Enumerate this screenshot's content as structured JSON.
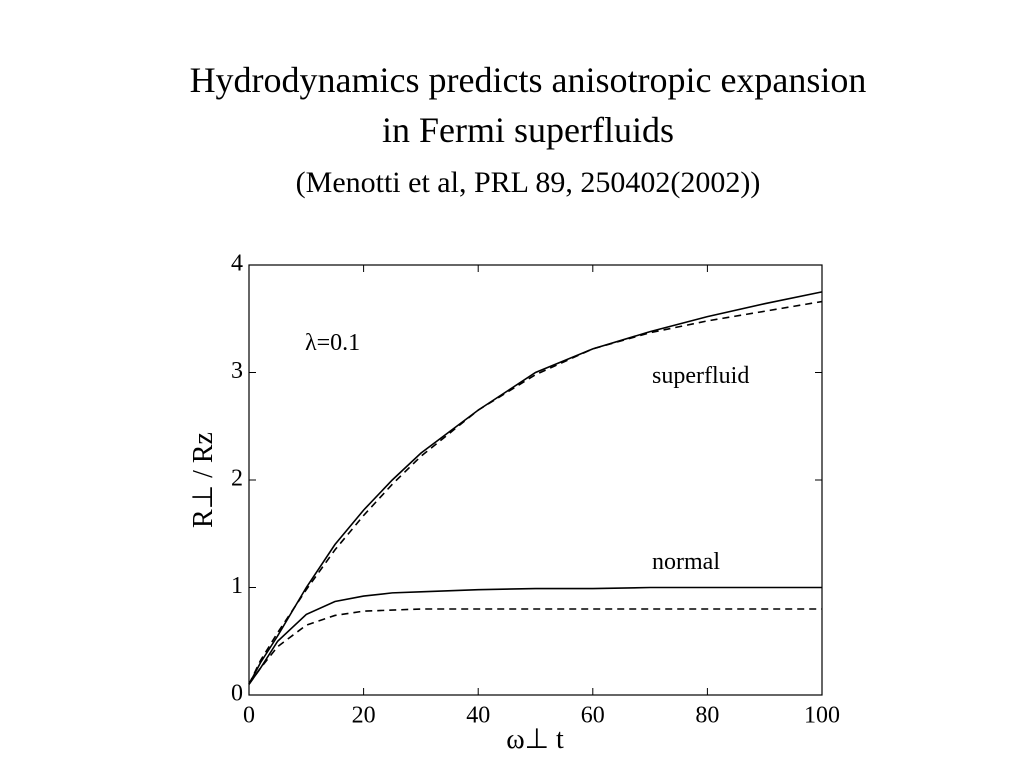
{
  "chart_data": {
    "type": "line",
    "title": [
      "Hydrodynamics predicts anisotropic expansion",
      "in Fermi superfluids"
    ],
    "subtitle": "(Menotti et al, PRL 89, 250402(2002))",
    "xlabel": "ω⊥ t",
    "ylabel": "R⊥ / Rz",
    "annotations": [
      "λ=0.1",
      "superfluid",
      "normal"
    ],
    "x": [
      0,
      2,
      5,
      10,
      15,
      20,
      25,
      30,
      40,
      50,
      60,
      70,
      80,
      90,
      100
    ],
    "series": [
      {
        "color": "#000000",
        "style": "solid",
        "values": [
          0.1,
          0.3,
          0.55,
          1.0,
          1.4,
          1.72,
          2.0,
          2.25,
          2.65,
          3.0,
          3.22,
          3.38,
          3.52,
          3.64,
          3.75
        ]
      },
      {
        "color": "#000000",
        "style": "dashed",
        "values": [
          0.1,
          0.32,
          0.58,
          0.98,
          1.35,
          1.67,
          1.96,
          2.22,
          2.65,
          2.98,
          3.22,
          3.37,
          3.48,
          3.57,
          3.66
        ]
      },
      {
        "color": "#000000",
        "style": "solid",
        "values": [
          0.1,
          0.25,
          0.5,
          0.75,
          0.87,
          0.92,
          0.95,
          0.96,
          0.98,
          0.99,
          0.99,
          1.0,
          1.0,
          1.0,
          1.0
        ]
      },
      {
        "color": "#000000",
        "style": "dashed",
        "values": [
          0.1,
          0.25,
          0.45,
          0.65,
          0.74,
          0.78,
          0.79,
          0.8,
          0.8,
          0.8,
          0.8,
          0.8,
          0.8,
          0.8,
          0.8
        ]
      }
    ],
    "xlim": [
      0,
      100
    ],
    "xticks": [
      0,
      20,
      40,
      60,
      80,
      100
    ],
    "ylim": [
      0,
      4
    ],
    "yticks": [
      0,
      1,
      2,
      3,
      4
    ],
    "grid": false
  }
}
